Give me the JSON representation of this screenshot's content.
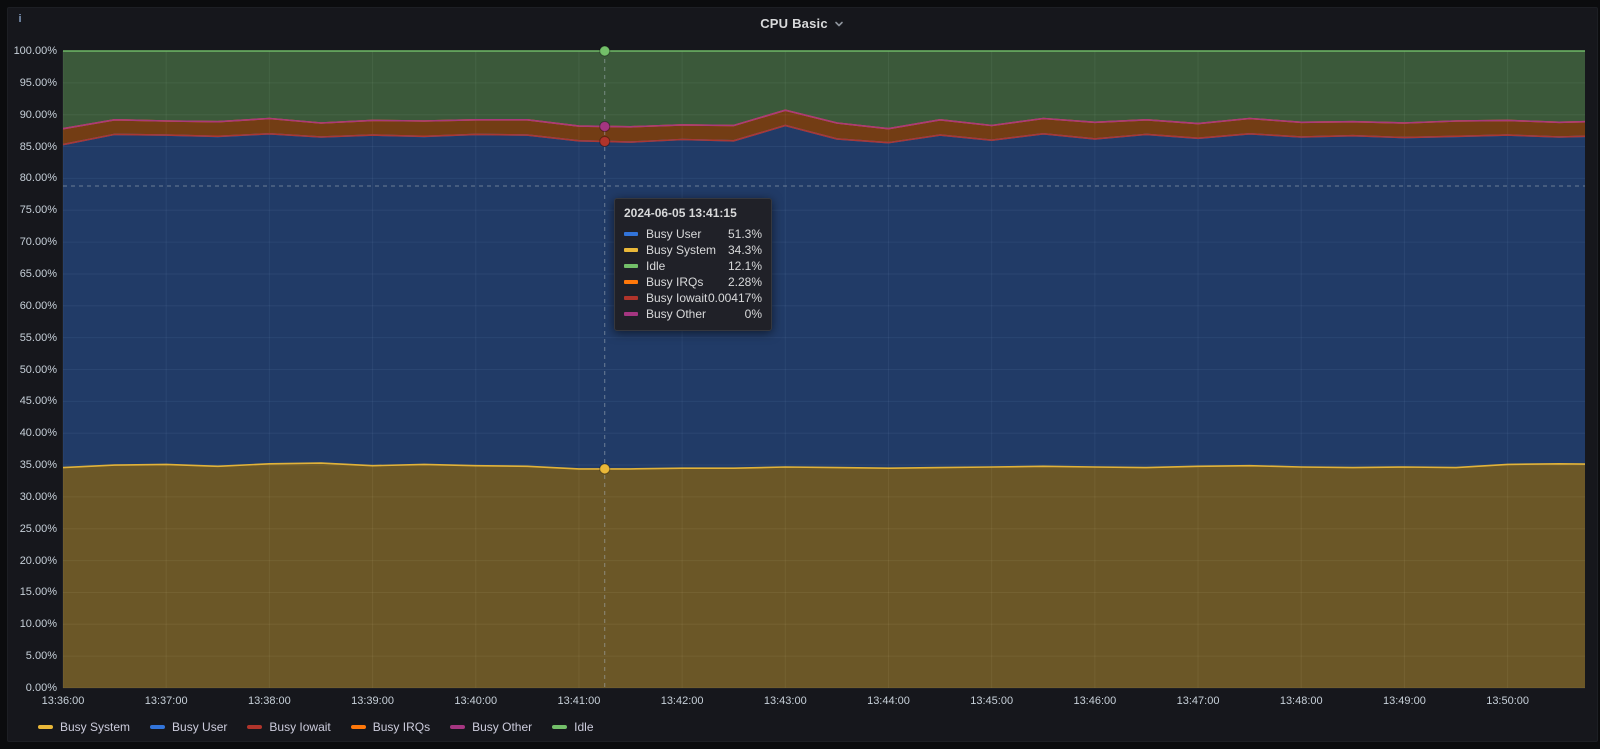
{
  "panel": {
    "title": "CPU Basic",
    "info_icon_glyph": "i"
  },
  "colors": {
    "page_bg": "#0b0c0e",
    "panel_bg": "#16171c",
    "grid": "rgba(255,255,255,0.07)",
    "axis_text": "#c7d0d9",
    "crosshair": "rgba(170,180,190,0.55)",
    "tooltip_bg": "#202128"
  },
  "chart_data": {
    "type": "area",
    "stacked": true,
    "unit": "percent",
    "title": "CPU Basic",
    "ylim": [
      0,
      100
    ],
    "grid": true,
    "legend_position": "bottom",
    "x_start": "13:36:00",
    "x_step_seconds": 30,
    "x_ticks": [
      "13:36:00",
      "13:37:00",
      "13:38:00",
      "13:39:00",
      "13:40:00",
      "13:41:00",
      "13:42:00",
      "13:43:00",
      "13:44:00",
      "13:45:00",
      "13:46:00",
      "13:47:00",
      "13:48:00",
      "13:49:00",
      "13:50:00"
    ],
    "y_ticks": [
      "0.00%",
      "5.00%",
      "10.00%",
      "15.00%",
      "20.00%",
      "25.00%",
      "30.00%",
      "35.00%",
      "40.00%",
      "45.00%",
      "50.00%",
      "55.00%",
      "60.00%",
      "65.00%",
      "70.00%",
      "75.00%",
      "80.00%",
      "85.00%",
      "90.00%",
      "95.00%",
      "100.00%"
    ],
    "series": [
      {
        "name": "Busy System",
        "color": "#EAB839",
        "values": [
          34.6,
          35.0,
          35.1,
          34.8,
          35.2,
          35.3,
          34.9,
          35.1,
          34.9,
          34.8,
          34.4,
          34.4,
          34.5,
          34.5,
          34.7,
          34.6,
          34.5,
          34.6,
          34.7,
          34.8,
          34.7,
          34.6,
          34.8,
          34.9,
          34.7,
          34.6,
          34.7,
          34.6,
          35.1,
          35.2,
          35.1
        ]
      },
      {
        "name": "Busy User",
        "color": "#3274D9",
        "values": [
          50.7,
          51.9,
          51.7,
          51.8,
          51.8,
          51.2,
          51.9,
          51.5,
          52.0,
          52.0,
          51.5,
          51.3,
          51.6,
          51.4,
          53.6,
          51.6,
          51.1,
          52.2,
          51.3,
          52.2,
          51.5,
          52.3,
          51.5,
          52.1,
          51.8,
          52.1,
          51.7,
          52.0,
          51.7,
          51.3,
          51.6
        ]
      },
      {
        "name": "Busy Iowait",
        "color": "#B0342B",
        "values": [
          0.004,
          0.004,
          0.004,
          0.004,
          0.004,
          0.004,
          0.004,
          0.004,
          0.004,
          0.004,
          0.004,
          0.004,
          0.004,
          0.004,
          0.004,
          0.004,
          0.004,
          0.004,
          0.004,
          0.004,
          0.004,
          0.004,
          0.004,
          0.004,
          0.004,
          0.004,
          0.004,
          0.004,
          0.004,
          0.004,
          0.004
        ]
      },
      {
        "name": "Busy IRQs",
        "color": "#FF780A",
        "values": [
          2.5,
          2.3,
          2.2,
          2.3,
          2.4,
          2.2,
          2.3,
          2.4,
          2.3,
          2.4,
          2.3,
          2.4,
          2.3,
          2.4,
          2.4,
          2.5,
          2.2,
          2.4,
          2.3,
          2.4,
          2.6,
          2.3,
          2.3,
          2.4,
          2.3,
          2.2,
          2.3,
          2.4,
          2.3,
          2.3,
          2.3
        ]
      },
      {
        "name": "Busy Other",
        "color": "#A53681",
        "values": [
          0,
          0,
          0,
          0,
          0,
          0,
          0,
          0,
          0,
          0,
          0,
          0,
          0,
          0,
          0,
          0,
          0,
          0,
          0,
          0,
          0,
          0,
          0,
          0,
          0,
          0,
          0,
          0,
          0,
          0,
          0
        ]
      },
      {
        "name": "Idle",
        "color": "#73BF69",
        "values": [
          12.2,
          10.8,
          11.0,
          11.1,
          10.6,
          11.3,
          10.9,
          11.0,
          10.8,
          10.8,
          11.8,
          11.9,
          11.6,
          11.7,
          9.3,
          11.3,
          12.2,
          10.8,
          11.7,
          10.6,
          11.2,
          10.8,
          11.4,
          10.6,
          11.2,
          11.1,
          11.3,
          11.0,
          10.9,
          11.2,
          11.0
        ]
      }
    ],
    "legend": [
      "Busy System",
      "Busy User",
      "Busy Iowait",
      "Busy IRQs",
      "Busy Other",
      "Idle"
    ]
  },
  "tooltip": {
    "timestamp": "2024-06-05 13:41:15",
    "rows": [
      {
        "name": "Busy User",
        "value": "51.3%",
        "color": "#3274D9"
      },
      {
        "name": "Busy System",
        "value": "34.3%",
        "color": "#EAB839"
      },
      {
        "name": "Idle",
        "value": "12.1%",
        "color": "#73BF69"
      },
      {
        "name": "Busy IRQs",
        "value": "2.28%",
        "color": "#FF780A"
      },
      {
        "name": "Busy Iowait",
        "value": "0.00417%",
        "color": "#B0342B"
      },
      {
        "name": "Busy Other",
        "value": "0%",
        "color": "#A53681"
      }
    ]
  },
  "crosshair": {
    "time_label": "13:41:15",
    "minutes_from_start": 5.25,
    "hline_percent": 78.8,
    "dots": [
      {
        "series": "Idle",
        "color": "#73BF69",
        "stack_value": 100
      },
      {
        "series": "Busy Other",
        "color": "#A53681",
        "stack_value": 88.15
      },
      {
        "series": "Busy Iowait",
        "color": "#B0342B",
        "stack_value": 85.8
      },
      {
        "series": "Busy System",
        "color": "#EAB839",
        "stack_value": 34.4
      }
    ]
  }
}
